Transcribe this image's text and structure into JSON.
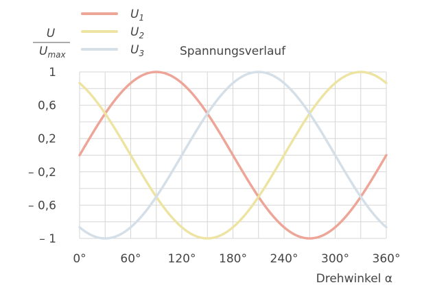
{
  "chart_data": {
    "type": "line",
    "title": "Spannungsverlauf",
    "ylabel": {
      "numerator": "U",
      "denominator_base": "U",
      "denominator_sub": "max"
    },
    "xlabel": "Drehwinkel α",
    "xlim": [
      0,
      360
    ],
    "ylim": [
      -1,
      1
    ],
    "x_ticks": [
      0,
      60,
      120,
      180,
      240,
      300,
      360
    ],
    "x_tick_labels": [
      "0°",
      "60°",
      "120°",
      "180°",
      "240°",
      "300°",
      "360°"
    ],
    "y_ticks": [
      1,
      0.6,
      0.2,
      -0.2,
      -0.6,
      -1
    ],
    "y_tick_labels": [
      "1",
      "0,6",
      "0,2",
      "– 0,2",
      "– 0,6",
      "– 1"
    ],
    "grid": true,
    "legend_position": "top-left",
    "series": [
      {
        "name": "U",
        "sub": "1",
        "color": "#eda597",
        "function": "sin(α)",
        "phase_deg": 0
      },
      {
        "name": "U",
        "sub": "2",
        "color": "#ede4a4",
        "function": "sin(α + 120°)",
        "phase_deg": 120
      },
      {
        "name": "U",
        "sub": "3",
        "color": "#d4dfe8",
        "function": "sin(α + 240°)",
        "phase_deg": 240
      }
    ]
  }
}
